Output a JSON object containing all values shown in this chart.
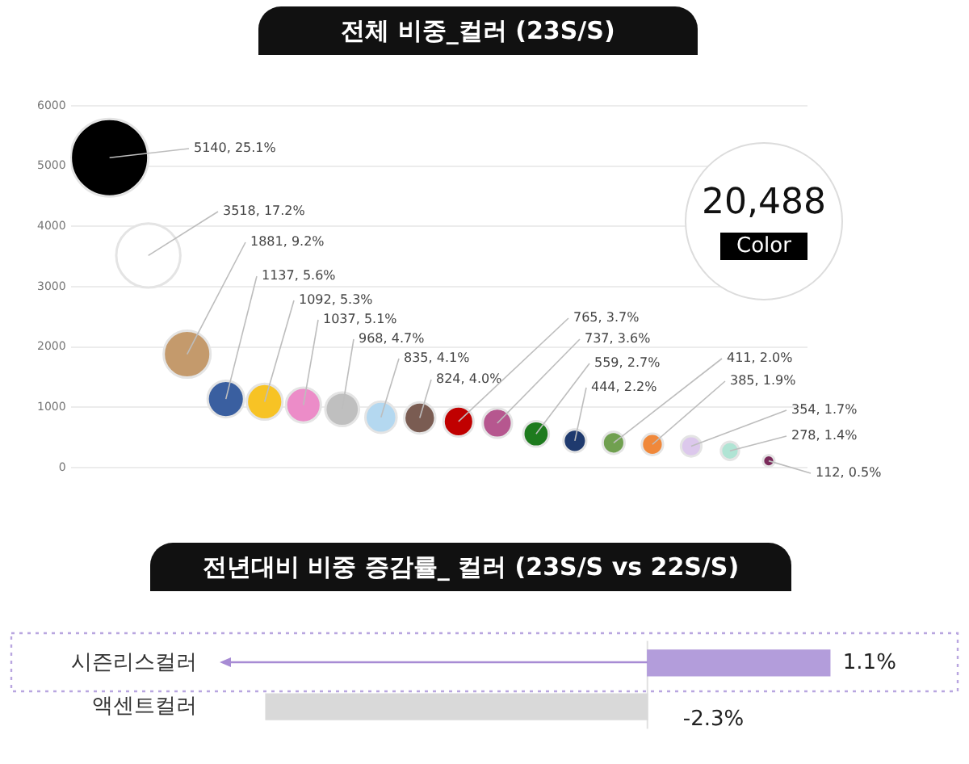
{
  "chart_data": [
    {
      "type": "bubble",
      "title": "전체 비중_컬러 (23S/S)",
      "categories": [
        null,
        null,
        null,
        null,
        null,
        null,
        null,
        null,
        null,
        null,
        null,
        null,
        null,
        null,
        null,
        null,
        null,
        null
      ],
      "values": [
        5140,
        3518,
        1881,
        1137,
        1092,
        1037,
        968,
        835,
        824,
        765,
        737,
        559,
        444,
        411,
        385,
        354,
        278,
        112
      ],
      "sizes": [
        1,
        0.684,
        0.366,
        0.221,
        0.212,
        0.202,
        0.188,
        0.162,
        0.16,
        0.149,
        0.143,
        0.109,
        0.086,
        0.08,
        0.075,
        0.069,
        0.054,
        0.022
      ],
      "colors": [
        "#000000",
        "#ffffff",
        "#c49a6c",
        "#3a5fa0",
        "#f7c325",
        "#ec8cc8",
        "#bfbfbf",
        "#b4d8f0",
        "#7a5c52",
        "#c00000",
        "#b6578f",
        "#1e7b1e",
        "#1f3a6e",
        "#70a050",
        "#f0883a",
        "#dcc8ec",
        "#b0e4d4",
        "#7a2a5a"
      ],
      "value_labels": [
        "5140, 25.1%",
        "3518, 17.2%",
        "1881, 9.2%",
        "1137, 5.6%",
        "1092, 5.3%",
        "1037, 5.1%",
        "968, 4.7%",
        "835, 4.1%",
        "824, 4.0%",
        "765, 3.7%",
        "737, 3.6%",
        "559, 2.7%",
        "444, 2.2%",
        "411, 2.0%",
        "385, 1.9%",
        "354, 1.7%",
        "278, 1.4%",
        "112, 0.5%"
      ],
      "ylim": [
        0,
        6000
      ],
      "yticks": [
        0,
        1000,
        2000,
        3000,
        4000,
        5000,
        6000
      ],
      "grid": "y",
      "annotations": [
        "20,488",
        "Color"
      ]
    },
    {
      "type": "bar",
      "orientation": "horizontal",
      "title": "전년대비 비중 증감률_ 컬러 (23S/S vs 22S/S)",
      "categories": [
        "시즌리스컬러",
        "액센트컬러"
      ],
      "values": [
        1.1,
        -2.3
      ],
      "colors": [
        "#b39ddb",
        "#d9d9d9"
      ],
      "value_labels": [
        "1.1%",
        "-2.3%"
      ],
      "ref_lines": [
        {
          "axis": "x",
          "value": 0,
          "color": "#e0e0e0"
        }
      ],
      "tick_labels": "y"
    }
  ]
}
